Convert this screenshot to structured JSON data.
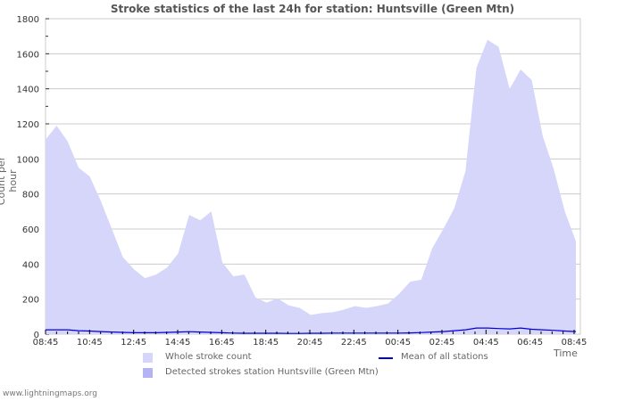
{
  "chart_data": {
    "type": "area",
    "title": "Stroke statistics of the last 24h for station: Huntsville (Green Mtn)",
    "xlabel": "Time",
    "ylabel": "Count per hour",
    "ylim": [
      0,
      1800
    ],
    "yticks": [
      0,
      200,
      400,
      600,
      800,
      1000,
      1200,
      1400,
      1600,
      1800
    ],
    "xticks": [
      "08:45",
      "10:45",
      "12:45",
      "14:45",
      "16:45",
      "18:45",
      "20:45",
      "22:45",
      "00:45",
      "02:45",
      "04:45",
      "06:45",
      "08:45"
    ],
    "grid": true,
    "legend_position": "bottom",
    "x": [
      "08:45",
      "09:15",
      "09:45",
      "10:15",
      "10:45",
      "11:15",
      "11:45",
      "12:15",
      "12:45",
      "13:15",
      "13:45",
      "14:15",
      "14:45",
      "15:15",
      "15:45",
      "16:15",
      "16:45",
      "17:15",
      "17:45",
      "18:15",
      "18:45",
      "19:15",
      "19:45",
      "20:15",
      "20:45",
      "21:15",
      "21:45",
      "22:15",
      "22:45",
      "23:15",
      "23:45",
      "00:15",
      "00:45",
      "01:15",
      "01:45",
      "02:15",
      "02:45",
      "03:15",
      "03:45",
      "04:15",
      "04:45",
      "05:15",
      "05:45",
      "06:15",
      "06:45",
      "07:15",
      "07:45",
      "08:15",
      "08:45"
    ],
    "series": [
      {
        "name": "Whole stroke count",
        "color": "#d6d6fa",
        "values": [
          1110,
          1190,
          1100,
          950,
          900,
          760,
          600,
          440,
          370,
          320,
          340,
          380,
          460,
          680,
          650,
          700,
          410,
          330,
          340,
          210,
          180,
          205,
          165,
          150,
          110,
          120,
          125,
          140,
          160,
          150,
          160,
          175,
          230,
          300,
          310,
          490,
          600,
          720,
          930,
          1520,
          1680,
          1640,
          1400,
          1510,
          1450,
          1130,
          940,
          700,
          530
        ]
      },
      {
        "name": "Detected strokes station Huntsville (Green Mtn)",
        "color": "#b4b4f5",
        "values": [
          0,
          0,
          0,
          0,
          0,
          0,
          0,
          0,
          0,
          0,
          0,
          0,
          0,
          0,
          0,
          0,
          0,
          0,
          0,
          0,
          0,
          0,
          0,
          0,
          0,
          0,
          0,
          0,
          0,
          0,
          0,
          0,
          0,
          0,
          0,
          0,
          0,
          0,
          0,
          0,
          0,
          0,
          0,
          0,
          0,
          0,
          0,
          0,
          0
        ]
      },
      {
        "name": "Mean of all stations",
        "color": "#0000dd",
        "type": "line",
        "values": [
          25,
          25,
          25,
          20,
          18,
          15,
          12,
          10,
          8,
          8,
          8,
          10,
          12,
          14,
          12,
          10,
          8,
          6,
          5,
          5,
          5,
          5,
          4,
          4,
          5,
          5,
          6,
          6,
          6,
          6,
          6,
          6,
          6,
          7,
          9,
          12,
          15,
          20,
          25,
          35,
          35,
          32,
          30,
          35,
          28,
          25,
          22,
          18,
          15
        ]
      }
    ]
  },
  "legend": {
    "whole": "Whole stroke count",
    "detected": "Detected strokes station Huntsville (Green Mtn)",
    "mean": "Mean of all stations"
  },
  "footer": "www.lightningmaps.org"
}
